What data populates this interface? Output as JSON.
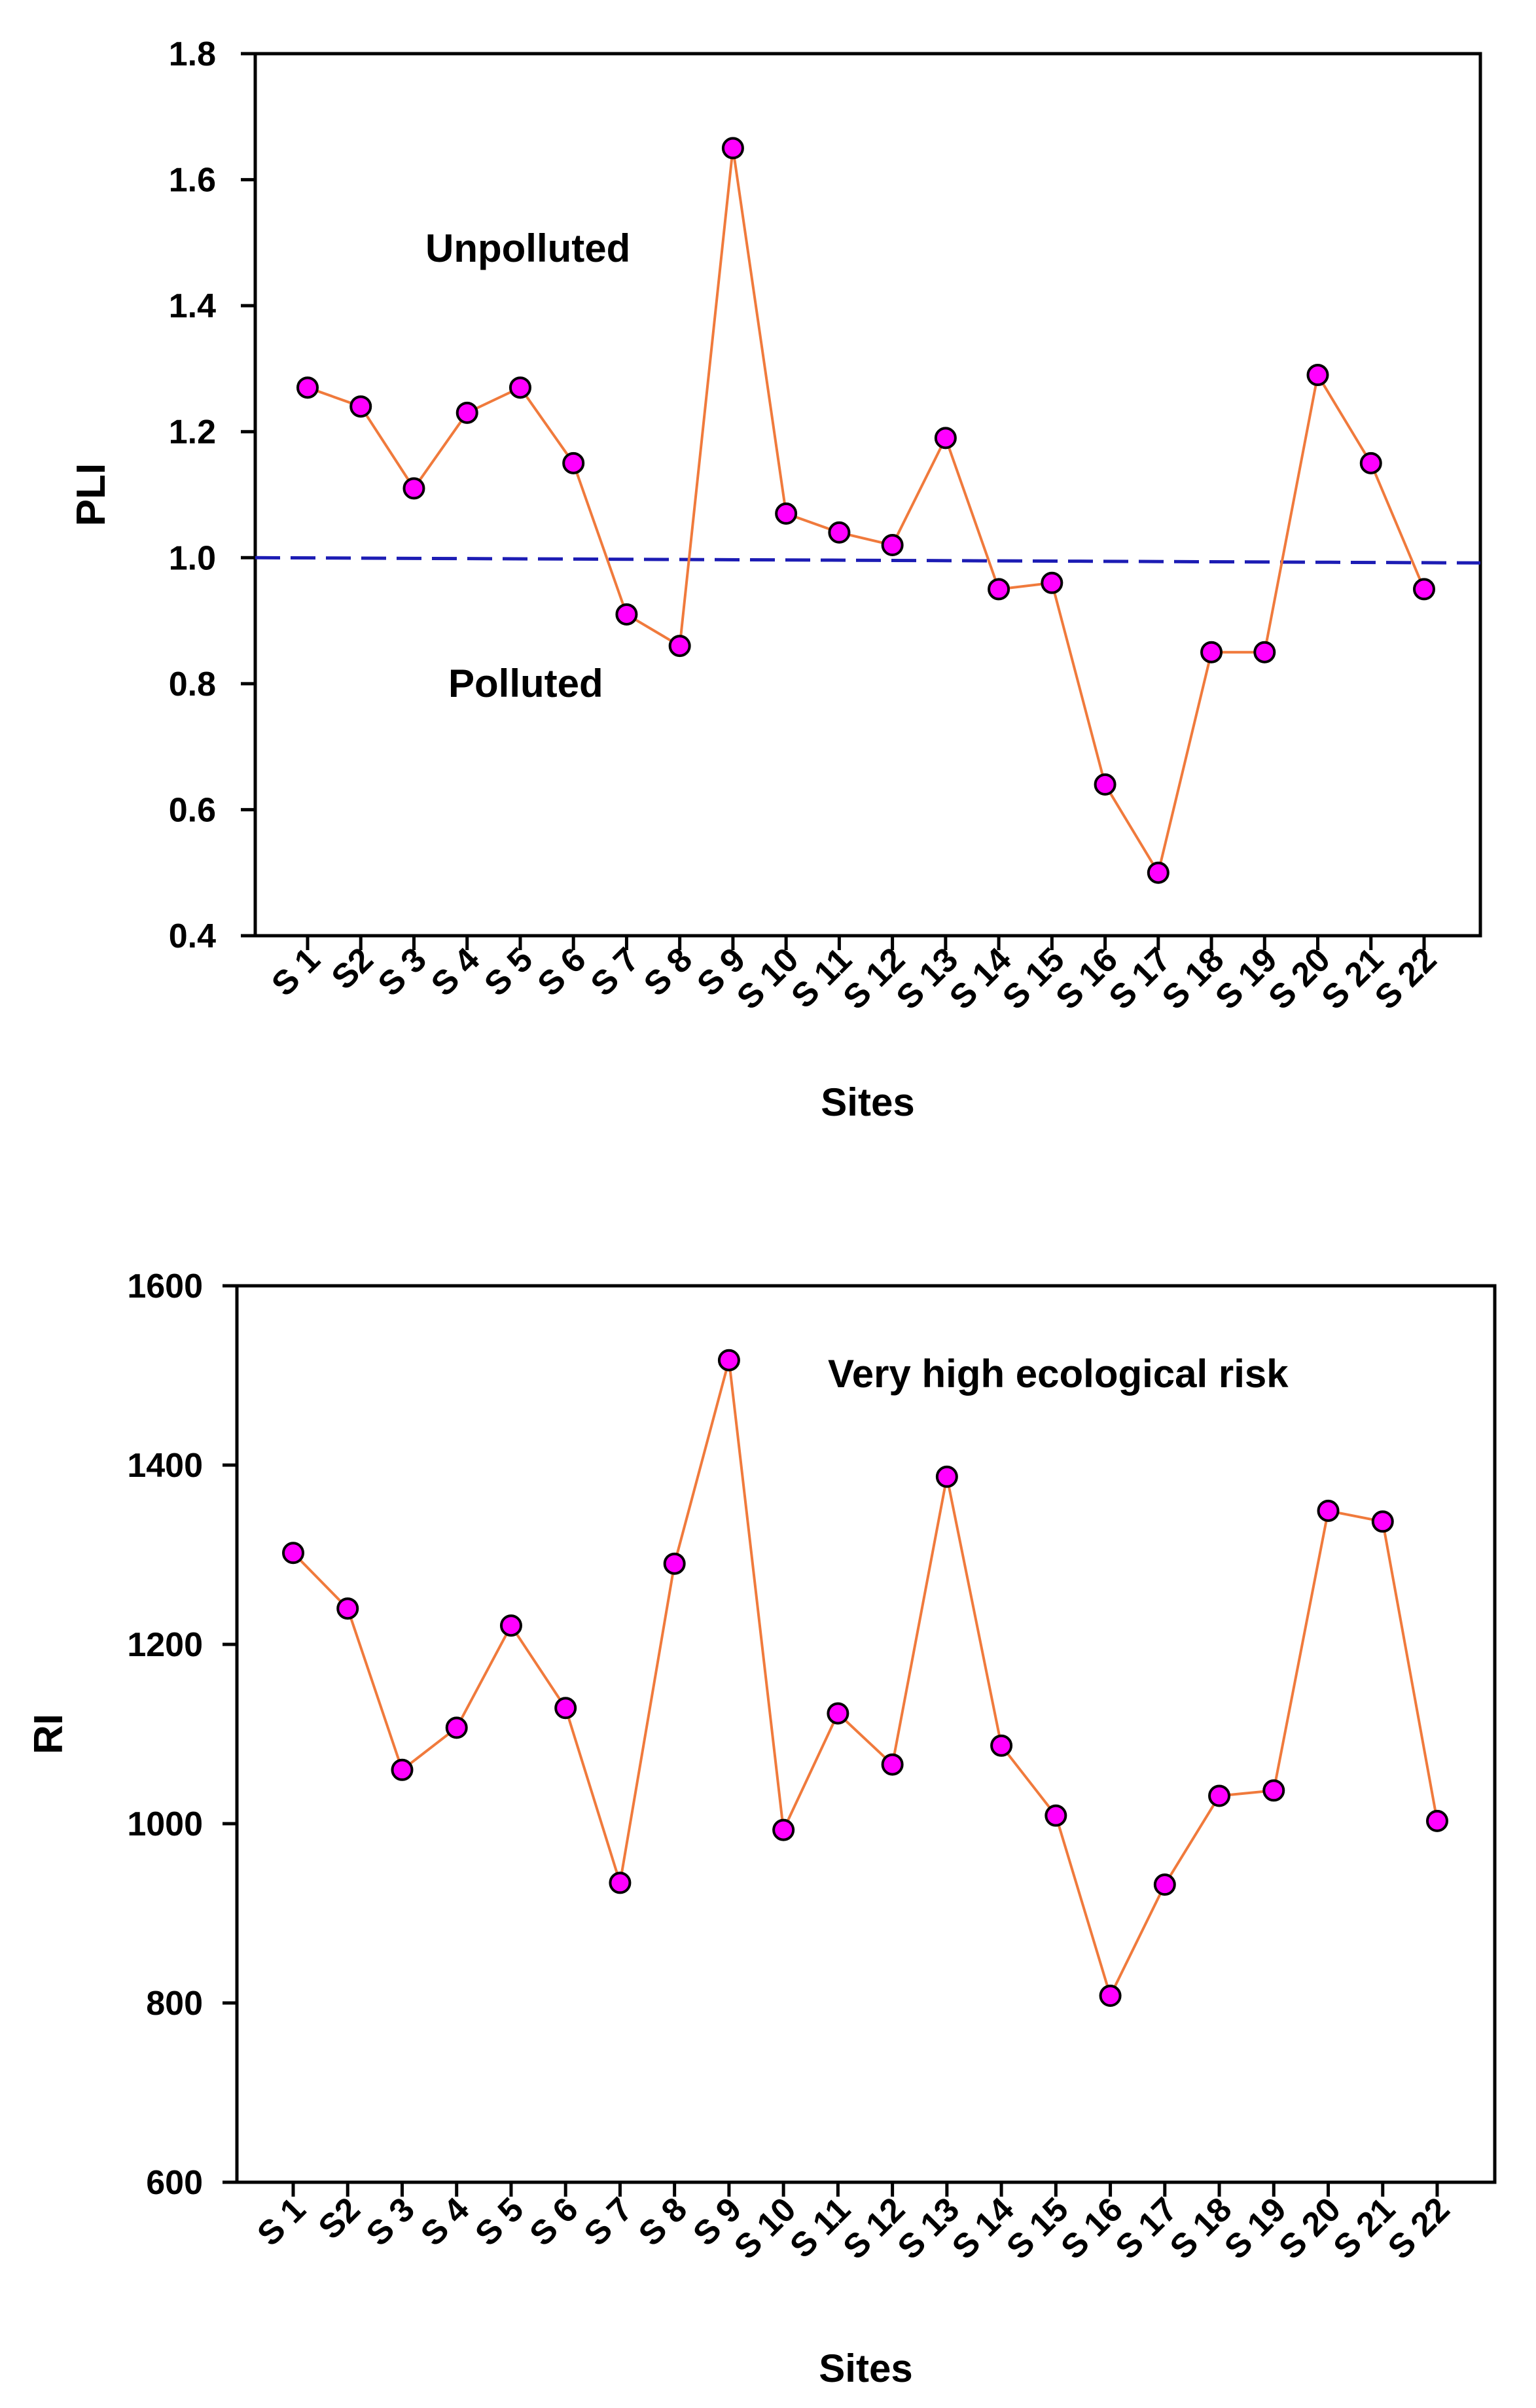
{
  "chart_data": [
    {
      "type": "line",
      "ylabel": "PLI",
      "xlabel": "Sites",
      "ylim": [
        0.4,
        1.8
      ],
      "yticks": [
        "0.4",
        "0.6",
        "0.8",
        "1.0",
        "1.2",
        "1.4",
        "1.6",
        "1.8"
      ],
      "ytick_values": [
        0.4,
        0.6,
        0.8,
        1.0,
        1.2,
        1.4,
        1.6,
        1.8
      ],
      "categories": [
        "S 1",
        "S2",
        "S 3",
        "S 4",
        "S 5",
        "S 6",
        "S 7",
        "S 8",
        "S 9",
        "S 10",
        "S 11",
        "S 12",
        "S 13",
        "S 14",
        "S 15",
        "S 16",
        "S 17",
        "S 18",
        "S 19",
        "S 20",
        "S 21",
        "S 22"
      ],
      "values": [
        1.27,
        1.24,
        1.11,
        1.23,
        1.27,
        1.15,
        0.91,
        0.86,
        1.65,
        1.07,
        1.04,
        1.02,
        1.19,
        0.95,
        0.96,
        0.64,
        0.5,
        0.85,
        0.85,
        1.29,
        1.15,
        0.95
      ],
      "reference_line": {
        "value": 1.0,
        "style": "dashed"
      },
      "annotations": [
        "Unpolluted",
        "Polluted"
      ],
      "grid": false
    },
    {
      "type": "line",
      "ylabel": "RI",
      "xlabel": "Sites",
      "ylim": [
        600,
        1600
      ],
      "yticks": [
        "600",
        "800",
        "1000",
        "1200",
        "1400",
        "1600"
      ],
      "ytick_values": [
        600,
        800,
        1000,
        1200,
        1400,
        1600
      ],
      "categories": [
        "S 1",
        "S2",
        "S 3",
        "S 4",
        "S 5",
        "S 6",
        "S 7",
        "S 8",
        "S 9",
        "S 10",
        "S 11",
        "S 12",
        "S 13",
        "S 14",
        "S 15",
        "S 16",
        "S 17",
        "S 18",
        "S 19",
        "S 20",
        "S 21",
        "S 22"
      ],
      "values": [
        1302,
        1240,
        1060,
        1107,
        1221,
        1129,
        934,
        1290,
        1517,
        993,
        1123,
        1066,
        1387,
        1087,
        1009,
        808,
        932,
        1031,
        1037,
        1349,
        1337,
        1003
      ],
      "annotations": [
        "Very high ecological risk"
      ],
      "grid": false
    }
  ],
  "colors": {
    "line": "#f07a3c",
    "marker_fill": "#ff00ff",
    "marker_stroke": "#000000",
    "reference_line": "#1c1cb4",
    "axis": "#000000"
  }
}
